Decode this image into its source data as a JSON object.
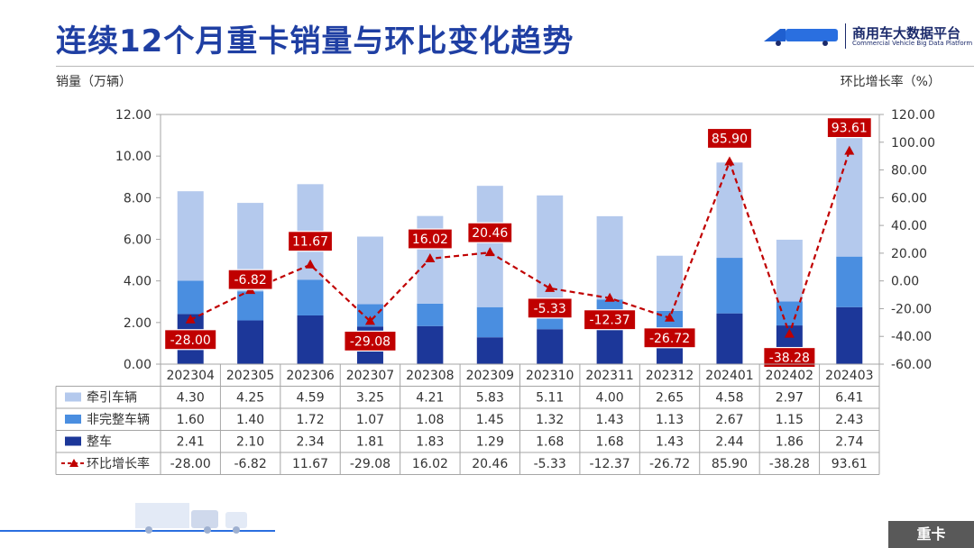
{
  "page": {
    "title": "连续12个月重卡销量与环比变化趋势",
    "brand": "商用车大数据平台",
    "brand_sub": "Commercial Vehicle Big Data Platform",
    "footer_tag": "重卡"
  },
  "colors": {
    "title": "#1f3fa3",
    "tractor": "#b4c9ed",
    "incomplete": "#4a8ee0",
    "complete": "#1c3799",
    "line": "#c00000",
    "label_bg": "#c00000"
  },
  "chart_data": {
    "type": "bar",
    "stacked": true,
    "categories": [
      "202304",
      "202305",
      "202306",
      "202307",
      "202308",
      "202309",
      "202310",
      "202311",
      "202312",
      "202401",
      "202402",
      "202403"
    ],
    "series": [
      {
        "name": "整车",
        "values": [
          2.41,
          2.1,
          2.34,
          1.81,
          1.83,
          1.29,
          1.68,
          1.68,
          1.43,
          2.44,
          1.86,
          2.74
        ]
      },
      {
        "name": "非完整车辆",
        "values": [
          1.6,
          1.4,
          1.72,
          1.07,
          1.08,
          1.45,
          1.32,
          1.43,
          1.13,
          2.67,
          1.15,
          2.43
        ]
      },
      {
        "name": "牵引车辆",
        "values": [
          4.3,
          4.25,
          4.59,
          3.25,
          4.21,
          5.83,
          5.11,
          4.0,
          2.65,
          4.58,
          2.97,
          6.41
        ]
      }
    ],
    "line_series": {
      "name": "环比增长率",
      "values": [
        -28.0,
        -6.82,
        11.67,
        -29.08,
        16.02,
        20.46,
        -5.33,
        -12.37,
        -26.72,
        85.9,
        -38.28,
        93.61
      ]
    },
    "ylabel_left": "销量（万辆）",
    "ylabel_right": "环比增长率（%）",
    "ylim_left": [
      0,
      12
    ],
    "ylim_right": [
      -60,
      120
    ],
    "left_ticks": [
      "0.00",
      "2.00",
      "4.00",
      "6.00",
      "8.00",
      "10.00",
      "12.00"
    ],
    "right_ticks": [
      "-60.00",
      "-40.00",
      "-20.00",
      "0.00",
      "20.00",
      "40.00",
      "60.00",
      "80.00",
      "100.00",
      "120.00"
    ],
    "table_rows": [
      {
        "name": "牵引车辆",
        "values": [
          "4.30",
          "4.25",
          "4.59",
          "3.25",
          "4.21",
          "5.83",
          "5.11",
          "4.00",
          "2.65",
          "4.58",
          "2.97",
          "6.41"
        ]
      },
      {
        "name": "非完整车辆",
        "values": [
          "1.60",
          "1.40",
          "1.72",
          "1.07",
          "1.08",
          "1.45",
          "1.32",
          "1.43",
          "1.13",
          "2.67",
          "1.15",
          "2.43"
        ]
      },
      {
        "name": "整车",
        "values": [
          "2.41",
          "2.10",
          "2.34",
          "1.81",
          "1.83",
          "1.29",
          "1.68",
          "1.68",
          "1.43",
          "2.44",
          "1.86",
          "2.74"
        ]
      },
      {
        "name": "环比增长率",
        "values": [
          "-28.00",
          "-6.82",
          "11.67",
          "-29.08",
          "16.02",
          "20.46",
          "-5.33",
          "-12.37",
          "-26.72",
          "85.90",
          "-38.28",
          "93.61"
        ]
      }
    ],
    "grid": false,
    "legend": "table-bottom"
  }
}
